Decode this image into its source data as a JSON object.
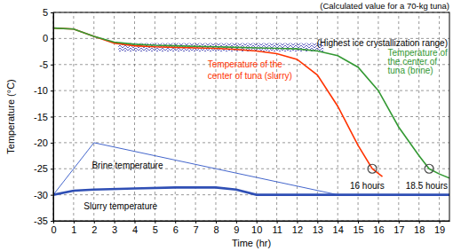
{
  "chart_data": {
    "type": "line",
    "title": "(Calculated value for a 70-kg tuna)",
    "x_label": "Time (hr)",
    "y_label": "Temperature (°C)",
    "xlim": [
      0,
      19.5
    ],
    "ylim": [
      -35,
      5
    ],
    "xticks": [
      0,
      1,
      2,
      3,
      4,
      5,
      6,
      7,
      8,
      9,
      10,
      11,
      12,
      13,
      14,
      15,
      16,
      17,
      18,
      19
    ],
    "yticks": [
      -35,
      -30,
      -25,
      -20,
      -15,
      -10,
      -5,
      0,
      5
    ],
    "grid": true,
    "series": [
      {
        "color": "#ff3300",
        "line_style": "solid",
        "x": [
          0,
          1,
          2,
          3,
          4,
          5,
          6,
          7,
          8,
          9,
          10,
          11,
          12,
          13,
          14,
          15,
          15.7,
          16.2
        ],
        "values": [
          2,
          1.8,
          0.4,
          -0.9,
          -1.4,
          -1.6,
          -1.7,
          -1.8,
          -1.9,
          -2.1,
          -2.4,
          -2.9,
          -4,
          -7,
          -13,
          -20.5,
          -25,
          -26.5
        ]
      },
      {
        "color": "#339933",
        "line_style": "solid",
        "x": [
          0,
          1,
          2,
          3,
          4,
          5,
          6,
          7,
          8,
          9,
          10,
          11,
          12,
          13,
          14,
          15,
          16,
          17,
          18,
          18.5,
          19,
          19.5
        ],
        "values": [
          2,
          1.8,
          0.4,
          -0.7,
          -1.1,
          -1.3,
          -1.4,
          -1.5,
          -1.6,
          -1.7,
          -1.8,
          -1.9,
          -2,
          -2.4,
          -3.3,
          -5.5,
          -10,
          -17,
          -22.5,
          -25,
          -26,
          -26.8
        ]
      },
      {
        "color": "#4466cc",
        "line_style": "solid",
        "x": [
          0,
          2,
          14,
          19.5
        ],
        "values": [
          -30,
          -20,
          -30,
          -30
        ]
      },
      {
        "color": "#2f4fb5",
        "line_style": "solid",
        "x": [
          0,
          1,
          2,
          4,
          6,
          8,
          9,
          10,
          19.5
        ],
        "values": [
          -30,
          -29.2,
          -29,
          -28.8,
          -28.6,
          -28.6,
          -29,
          -30,
          -30
        ]
      }
    ],
    "band": {
      "x": [
        3.2,
        13.3
      ],
      "y": [
        -2.5,
        -0.9
      ],
      "color": "#3a3ab0"
    },
    "points": [
      {
        "x": 15.7,
        "y": -25
      },
      {
        "x": 18.5,
        "y": -25
      }
    ],
    "annotations": [
      {
        "text": [
          "(Highest ice crystallization range)"
        ],
        "x": 13.4,
        "y": [
          -1.4
        ],
        "color": "#000000"
      },
      {
        "text": [
          "Temperature of the",
          "center of tuna (slurry)"
        ],
        "x": 7.6,
        "y": [
          -5.6,
          -7.7
        ],
        "color": "#ff3300"
      },
      {
        "text": [
          "Temperature of",
          "the center of",
          "tuna (brine)"
        ],
        "x": 16.7,
        "y": [
          -3.3,
          -5,
          -6.7
        ],
        "color": "#339933"
      },
      {
        "text": [
          "Brine temperature"
        ],
        "x": 1.9,
        "y": [
          -25
        ],
        "color": "#000000"
      },
      {
        "text": [
          "Slurry temperature"
        ],
        "x": 1.5,
        "y": [
          -32.8
        ],
        "color": "#000000"
      },
      {
        "text": [
          "16 hours"
        ],
        "x": 14.6,
        "y": [
          -28.8
        ],
        "color": "#000000"
      },
      {
        "text": [
          "18.5 hours"
        ],
        "x": 17.4,
        "y": [
          -28.8
        ],
        "color": "#000000"
      }
    ]
  }
}
